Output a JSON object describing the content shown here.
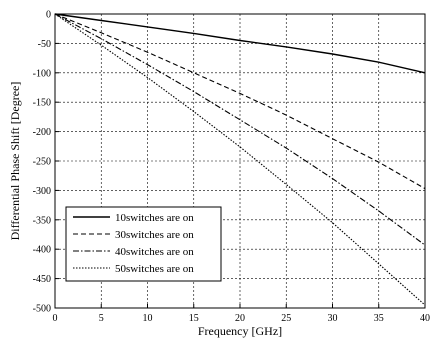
{
  "chart_data": {
    "type": "line",
    "title": "",
    "xlabel": "Frequency [GHz]",
    "ylabel": "Differential Phase Shift [Degree]",
    "xlim": [
      0,
      40
    ],
    "ylim": [
      -500,
      0
    ],
    "xticks": [
      0,
      5,
      10,
      15,
      20,
      25,
      30,
      35,
      40
    ],
    "yticks": [
      0,
      -50,
      -100,
      -150,
      -200,
      -250,
      -300,
      -350,
      -400,
      -450,
      -500
    ],
    "grid": true,
    "legend_position": "bottom-left",
    "series": [
      {
        "name": "10switches are on",
        "line_style": "solid",
        "x": [
          0,
          5,
          10,
          15,
          20,
          25,
          30,
          35,
          40
        ],
        "y": [
          0,
          -11,
          -22,
          -33,
          -45,
          -56,
          -68,
          -82,
          -100
        ]
      },
      {
        "name": "30switches are on",
        "line_style": "dashed",
        "x": [
          0,
          5,
          10,
          15,
          20,
          25,
          30,
          35,
          40
        ],
        "y": [
          0,
          -32,
          -65,
          -100,
          -135,
          -172,
          -212,
          -252,
          -297
        ]
      },
      {
        "name": "40switches are on",
        "line_style": "dashdot",
        "x": [
          0,
          5,
          10,
          15,
          20,
          25,
          30,
          35,
          40
        ],
        "y": [
          0,
          -42,
          -86,
          -132,
          -180,
          -228,
          -280,
          -335,
          -393
        ]
      },
      {
        "name": "50switches are on",
        "line_style": "dotted",
        "x": [
          0,
          5,
          10,
          15,
          20,
          25,
          30,
          35,
          40
        ],
        "y": [
          0,
          -53,
          -108,
          -166,
          -226,
          -290,
          -355,
          -425,
          -495
        ]
      }
    ]
  }
}
